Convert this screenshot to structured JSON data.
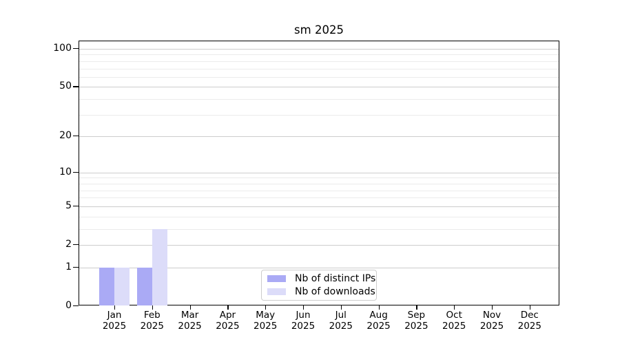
{
  "title": "sm 2025",
  "chart_data": {
    "type": "bar",
    "title": "sm 2025",
    "x_tick_months": [
      "Jan",
      "Feb",
      "Mar",
      "Apr",
      "May",
      "Jun",
      "Jul",
      "Aug",
      "Sep",
      "Oct",
      "Nov",
      "Dec"
    ],
    "x_tick_year": "2025",
    "series": [
      {
        "name": "Nb of distinct IPs",
        "color": "#aaaaf5",
        "values": [
          1,
          1,
          0,
          0,
          0,
          0,
          0,
          0,
          0,
          0,
          0,
          0
        ]
      },
      {
        "name": "Nb of downloads",
        "color": "#dcdcf9",
        "values": [
          1,
          3,
          0,
          0,
          0,
          0,
          0,
          0,
          0,
          0,
          0,
          0
        ]
      }
    ],
    "yscale": "log1p",
    "ylim": [
      0,
      115
    ],
    "y_major_ticks": [
      0,
      1,
      2,
      5,
      10,
      20,
      50,
      100
    ],
    "y_minor_gridlines": [
      3,
      4,
      6,
      7,
      8,
      9,
      30,
      40,
      60,
      70,
      80,
      90
    ],
    "grid": true,
    "legend_position": "lower center",
    "colors": {
      "major_grid": "#cccccc",
      "minor_grid": "#ebebeb",
      "spine": "#000000",
      "background": "#ffffff"
    }
  }
}
